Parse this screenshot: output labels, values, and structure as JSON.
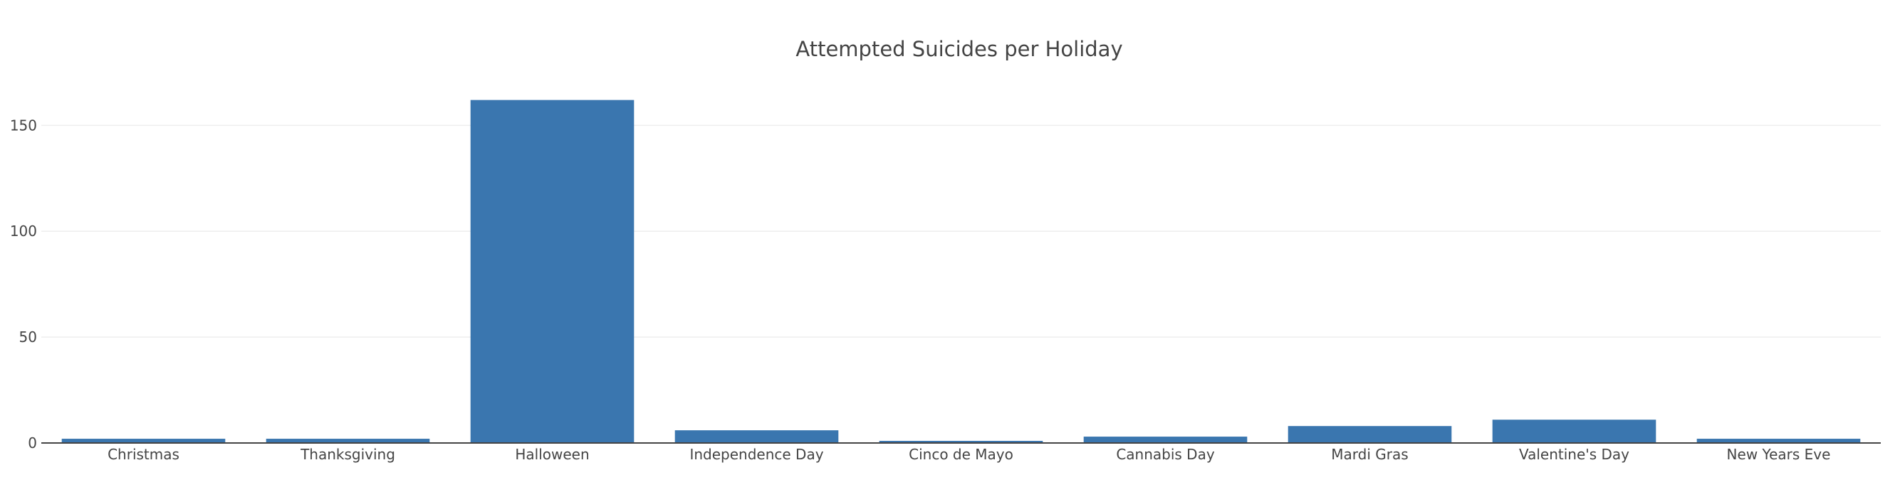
{
  "chart_data": {
    "type": "bar",
    "title": "Attempted Suicides per Holiday",
    "xlabel": "",
    "ylabel": "",
    "categories": [
      "Christmas",
      "Thanksgiving",
      "Halloween",
      "Independence Day",
      "Cinco de Mayo",
      "Cannabis Day",
      "Mardi Gras",
      "Valentine's Day",
      "New Years Eve"
    ],
    "values": [
      2,
      2,
      162,
      6,
      1,
      3,
      8,
      11,
      2
    ],
    "yticks": [
      0,
      50,
      100,
      150
    ],
    "ylim": [
      0,
      178
    ],
    "grid": true,
    "bar_color": "#3a76af",
    "legend": "none"
  }
}
